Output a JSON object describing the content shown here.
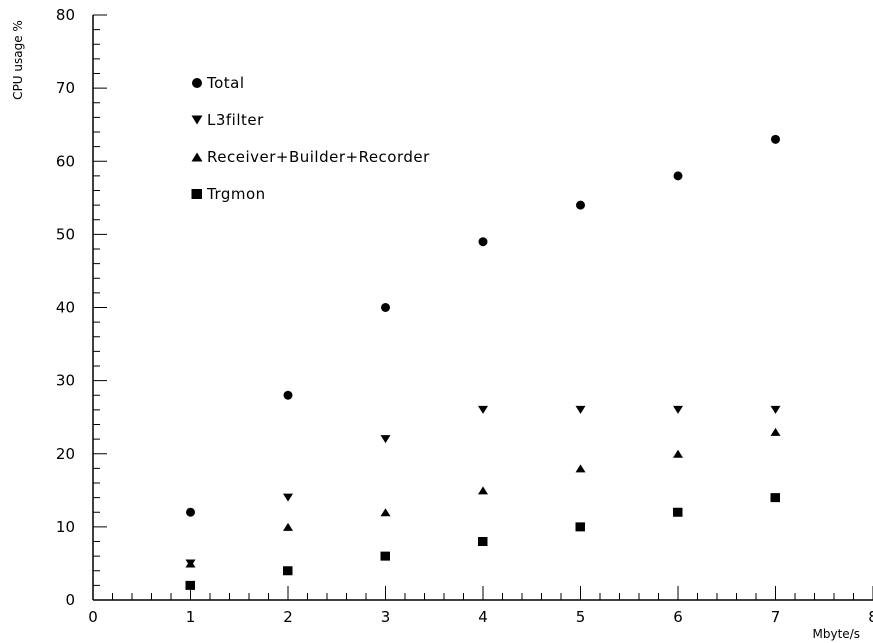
{
  "chart_data": {
    "type": "scatter",
    "title": "",
    "xlabel": "Mbyte/s",
    "ylabel": "CPU usage %",
    "xlim": [
      0,
      8
    ],
    "ylim": [
      0,
      80
    ],
    "xticks": [
      "0",
      "1",
      "2",
      "3",
      "4",
      "5",
      "6",
      "7",
      "8"
    ],
    "yticks": [
      "0",
      "10",
      "20",
      "30",
      "40",
      "50",
      "60",
      "70",
      "80"
    ],
    "grid": false,
    "legend_position": "top-left",
    "series": [
      {
        "name": "Total",
        "marker": "circle",
        "x": [
          1,
          2,
          3,
          4,
          5,
          6,
          7
        ],
        "y": [
          12,
          28,
          40,
          49,
          54,
          58,
          63
        ]
      },
      {
        "name": "L3filter",
        "marker": "triangle-down",
        "x": [
          1,
          2,
          3,
          4,
          5,
          6,
          7
        ],
        "y": [
          5,
          14,
          22,
          26,
          26,
          26,
          26
        ]
      },
      {
        "name": "Receiver+Builder+Recorder",
        "marker": "triangle-up",
        "x": [
          1,
          2,
          3,
          4,
          5,
          6,
          7
        ],
        "y": [
          5,
          10,
          12,
          15,
          18,
          20,
          23
        ]
      },
      {
        "name": "Trgmon",
        "marker": "square",
        "x": [
          1,
          2,
          3,
          4,
          5,
          6,
          7
        ],
        "y": [
          2,
          4,
          6,
          8,
          10,
          12,
          14
        ]
      }
    ]
  }
}
